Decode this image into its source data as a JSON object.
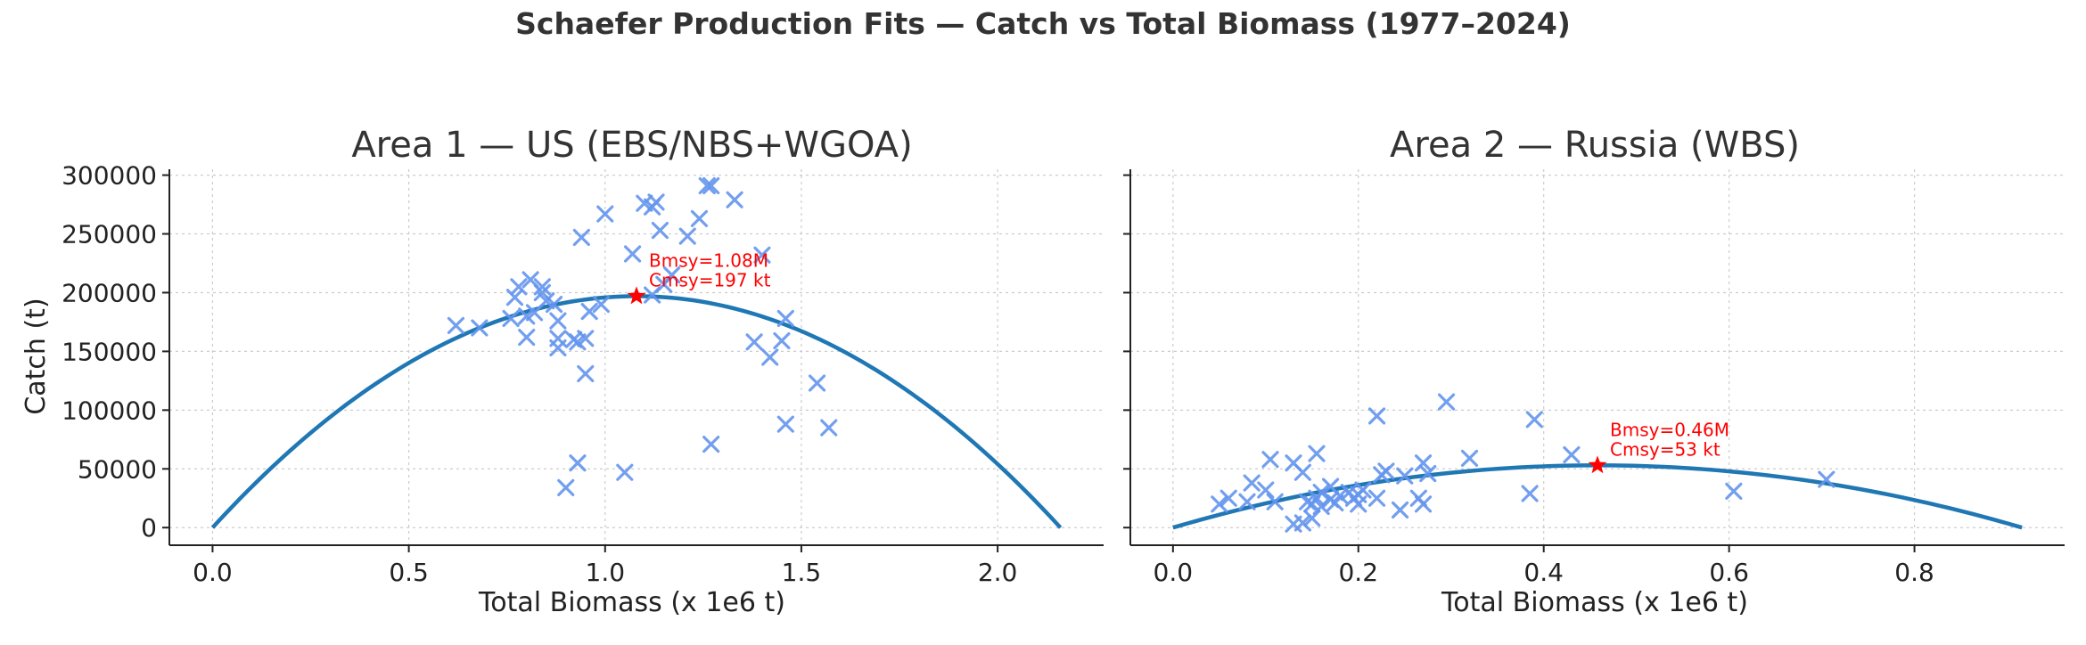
{
  "figure": {
    "suptitle": "Schaefer Production Fits — Catch vs Total Biomass (1977–2024)"
  },
  "colors": {
    "points": "#6495ED",
    "curve": "#1f77b4",
    "msy": "#ff0000",
    "text": "#333333"
  },
  "chart_data": [
    {
      "type": "scatter",
      "title": "Area 1 — US (EBS/NBS+WGOA)",
      "xlabel": "Total Biomass (x 1e6 t)",
      "ylabel": "Catch (t)",
      "xlim": [
        -0.11,
        2.27
      ],
      "ylim": [
        -15000,
        305000
      ],
      "xticks": [
        0.0,
        0.5,
        1.0,
        1.5,
        2.0
      ],
      "xtick_labels": [
        "0.0",
        "0.5",
        "1.0",
        "1.5",
        "2.0"
      ],
      "yticks": [
        0,
        50000,
        100000,
        150000,
        200000,
        250000,
        300000
      ],
      "ytick_labels": [
        "0",
        "50000",
        "100000",
        "150000",
        "200000",
        "250000",
        "300000"
      ],
      "grid": true,
      "series": [
        {
          "kind": "scatter",
          "marker": "x",
          "x": [
            0.62,
            0.68,
            0.76,
            0.77,
            0.78,
            0.8,
            0.8,
            0.81,
            0.82,
            0.84,
            0.84,
            0.85,
            0.87,
            0.88,
            0.88,
            0.88,
            0.9,
            0.92,
            0.93,
            0.93,
            0.94,
            0.95,
            0.95,
            0.96,
            0.99,
            1.0,
            1.05,
            1.07,
            1.1,
            1.12,
            1.12,
            1.13,
            1.14,
            1.15,
            1.17,
            1.21,
            1.24,
            1.26,
            1.27,
            1.27,
            1.33,
            1.38,
            1.4,
            1.42,
            1.45,
            1.46,
            1.46,
            1.54,
            1.57
          ],
          "y": [
            172000,
            170000,
            178000,
            196000,
            205000,
            180000,
            162000,
            211000,
            183000,
            200000,
            205000,
            193000,
            190000,
            176000,
            161000,
            153000,
            34000,
            160000,
            55000,
            158000,
            247000,
            131000,
            161000,
            184000,
            190000,
            267000,
            47000,
            233000,
            276000,
            273000,
            198000,
            277000,
            253000,
            207000,
            215000,
            248000,
            263000,
            291000,
            291000,
            71000,
            279000,
            158000,
            232000,
            145000,
            159000,
            178000,
            88000,
            123000,
            85000
          ]
        },
        {
          "kind": "line",
          "name": "Schaefer fit",
          "K": 2.16,
          "msy": 197000
        }
      ],
      "msy_point": {
        "x": 1.08,
        "y": 197000
      },
      "annotation": {
        "line1": "Bmsy=1.08M",
        "line2": "Cmsy=197 kt"
      }
    },
    {
      "type": "scatter",
      "title": "Area 2 — Russia (WBS)",
      "xlabel": "Total Biomass (x 1e6 t)",
      "ylabel": "",
      "xlim": [
        -0.046,
        0.962
      ],
      "ylim": [
        -15000,
        305000
      ],
      "xticks": [
        0.0,
        0.2,
        0.4,
        0.6,
        0.8
      ],
      "xtick_labels": [
        "0.0",
        "0.2",
        "0.4",
        "0.6",
        "0.8"
      ],
      "yticks": [
        0,
        50000,
        100000,
        150000,
        200000,
        250000,
        300000
      ],
      "ytick_labels": [
        "",
        "",
        "",
        "",
        "",
        "",
        ""
      ],
      "grid": true,
      "series": [
        {
          "kind": "scatter",
          "marker": "x",
          "x": [
            0.05,
            0.06,
            0.08,
            0.085,
            0.1,
            0.105,
            0.11,
            0.13,
            0.13,
            0.14,
            0.14,
            0.145,
            0.15,
            0.15,
            0.155,
            0.155,
            0.16,
            0.16,
            0.17,
            0.17,
            0.175,
            0.18,
            0.19,
            0.195,
            0.2,
            0.2,
            0.205,
            0.22,
            0.22,
            0.225,
            0.23,
            0.245,
            0.25,
            0.265,
            0.27,
            0.27,
            0.275,
            0.295,
            0.32,
            0.385,
            0.39,
            0.43,
            0.605,
            0.705
          ],
          "y": [
            20000,
            25000,
            22000,
            38000,
            32000,
            58000,
            22000,
            55000,
            3000,
            4000,
            47000,
            22000,
            20000,
            8000,
            25000,
            63000,
            30000,
            18000,
            35000,
            24000,
            21000,
            27000,
            30000,
            25000,
            20000,
            28000,
            32000,
            95000,
            25000,
            45000,
            48000,
            15000,
            44000,
            25000,
            55000,
            20000,
            46000,
            107000,
            59000,
            29000,
            92000,
            62000,
            31000,
            41000
          ]
        },
        {
          "kind": "line",
          "name": "Schaefer fit",
          "K": 0.916,
          "msy": 53000
        }
      ],
      "msy_point": {
        "x": 0.458,
        "y": 53000
      },
      "annotation": {
        "line1": "Bmsy=0.46M",
        "line2": "Cmsy=53 kt"
      }
    }
  ]
}
